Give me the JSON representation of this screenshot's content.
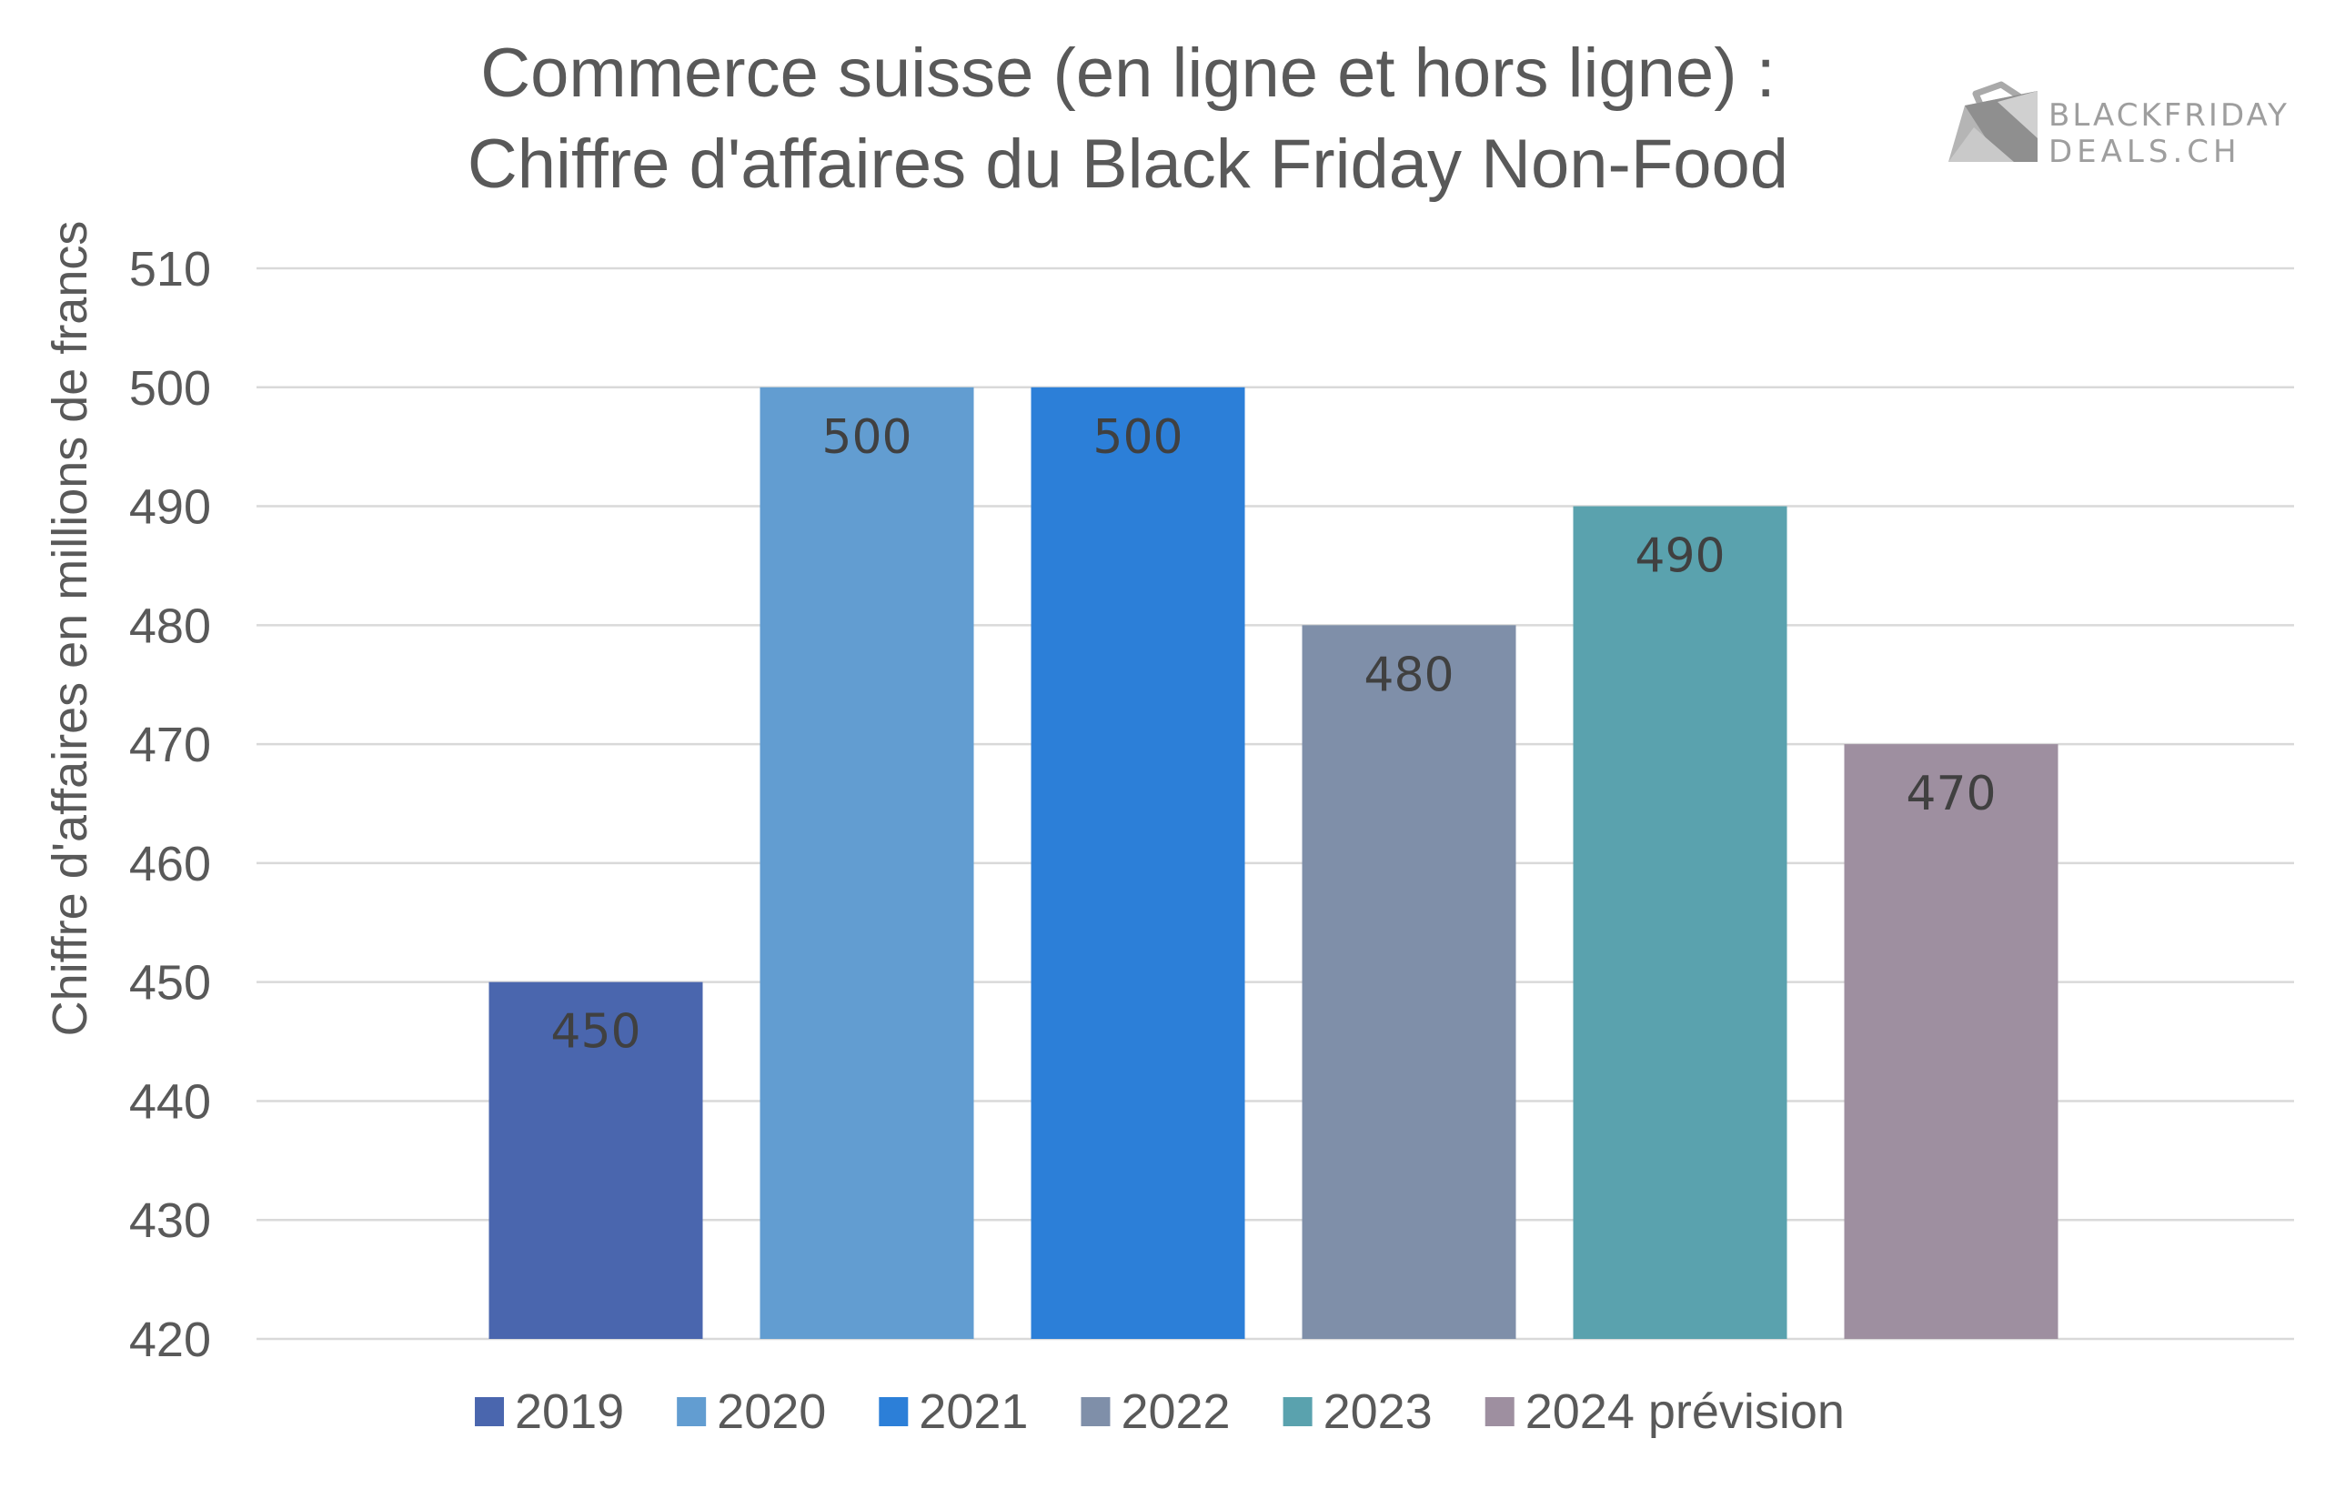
{
  "title_line1": "Commerce suisse (en ligne et hors ligne) :",
  "title_line2": "Chiffre d'affaires du Black Friday Non-Food",
  "brand": {
    "line1": "BLACKFRIDAY",
    "line2": "DEALS.CH",
    "icon": "shopping-bag-logo-icon"
  },
  "colors": {
    "grid": "#d9d9d9",
    "text": "#595959",
    "label": "#404040"
  },
  "chart_data": {
    "type": "bar",
    "title": "Commerce suisse (en ligne et hors ligne) : Chiffre d'affaires du Black Friday Non-Food",
    "xlabel": "",
    "ylabel": "Chiffre d'affaires en millions de francs",
    "ylim": [
      420,
      510
    ],
    "yticks": [
      "420",
      "430",
      "440",
      "450",
      "460",
      "470",
      "480",
      "490",
      "500",
      "510"
    ],
    "grid": true,
    "legend_position": "bottom",
    "series": [
      {
        "name": "2019",
        "value": 450,
        "label": "450",
        "color": "#4a66ae"
      },
      {
        "name": "2020",
        "value": 500,
        "label": "500",
        "color": "#629dd1"
      },
      {
        "name": "2021",
        "value": 500,
        "label": "500",
        "color": "#2c7fd8"
      },
      {
        "name": "2022",
        "value": 480,
        "label": "480",
        "color": "#7f8fa9"
      },
      {
        "name": "2023",
        "value": 490,
        "label": "490",
        "color": "#5aa2ae"
      },
      {
        "name": "2024 prévision",
        "value": 470,
        "label": "470",
        "color": "#9e8fa0"
      }
    ]
  }
}
